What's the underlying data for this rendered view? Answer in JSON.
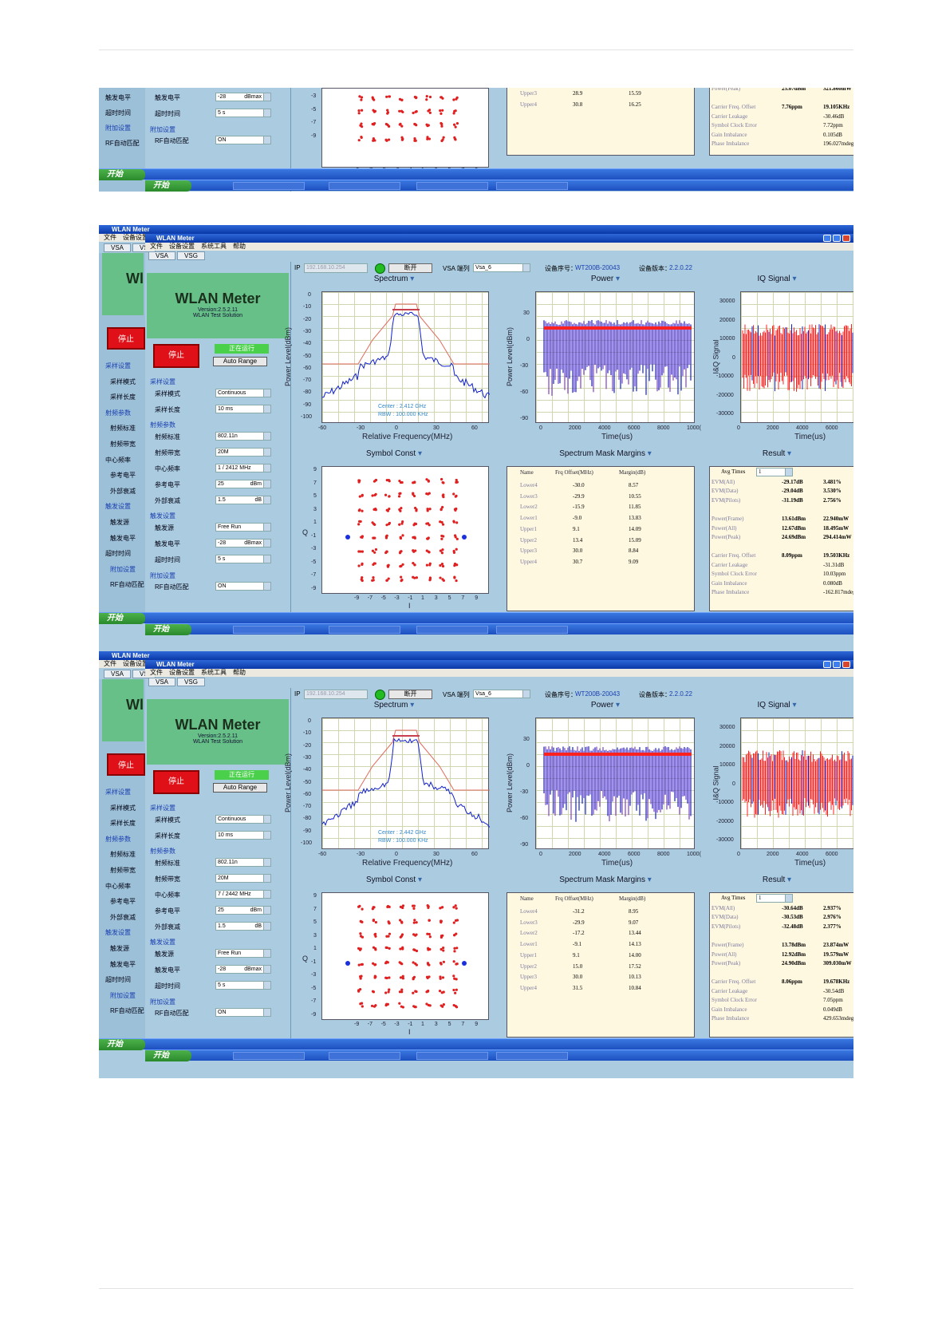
{
  "app": {
    "title": "WLAN Meter",
    "menus": [
      "文件",
      "设备设置",
      "系统工具",
      "帮助"
    ],
    "tabs": [
      "VSA",
      "VSG"
    ],
    "logo_title": "WLAN Meter",
    "version": "Version:2.5.2.11",
    "subtitle": "WLAN Test Solution",
    "stop": "停止",
    "running": "正在运行",
    "auto_range": "Auto Range",
    "start_button": "开始"
  },
  "back_window": {
    "menus": [
      "文件",
      "设备设置"
    ],
    "tabs": [
      "VSA",
      "VS"
    ],
    "stop": "停止",
    "labels": [
      "采样设置",
      "采样模式",
      "采样长度",
      "射频参数",
      "射频标准",
      "射频带宽",
      "中心频率",
      "参考电平",
      "外部衰减",
      "触发设置",
      "触发源",
      "触发电平",
      "超时时间",
      "附加设置",
      "RF自动匹配"
    ]
  },
  "topbar": {
    "ip_label": "IP",
    "ip": "192.168.10.254",
    "disconnect": "断开",
    "vsa_label": "VSA 端列",
    "vsa_value": "Vsa_6",
    "sn_label": "设备序号：",
    "sn": "WT200B-20043",
    "ver_label": "设备版本：",
    "ver": "2.2.0.22"
  },
  "panels": {
    "spectrum": "Spectrum",
    "power": "Power",
    "iq": "IQ Signal",
    "symbol": "Symbol Const",
    "mask": "Spectrum Mask Margins",
    "result": "Result"
  },
  "axes": {
    "spec_y_label": "Power Level(dBm)",
    "spec_y_ticks": [
      "0",
      "-10",
      "-20",
      "-30",
      "-40",
      "-50",
      "-60",
      "-70",
      "-80",
      "-90",
      "-100"
    ],
    "spec_x_label": "Relative Frequency(MHz)",
    "spec_x_ticks": [
      "-60",
      "-30",
      "0",
      "30",
      "60"
    ],
    "pow_y_label": "Power Level(dBm)",
    "pow_y_ticks": [
      "30",
      "0",
      "-30",
      "-60",
      "-90"
    ],
    "time_label": "Time(us)",
    "pow_x_ticks": [
      "0",
      "2000",
      "4000",
      "6000",
      "8000",
      "1000("
    ],
    "iq_y_label": "I&Q Signal",
    "iq_y_ticks": [
      "30000",
      "20000",
      "10000",
      "0",
      "-10000",
      "-20000",
      "-30000"
    ],
    "iq_x_ticks": [
      "0",
      "2000",
      "4000",
      "6000",
      "8"
    ],
    "const_y_label": "Q",
    "const_y_ticks": [
      "9",
      "7",
      "5",
      "3",
      "1",
      "-1",
      "-3",
      "-5",
      "-7",
      "-9"
    ],
    "const_x_ticks": [
      "-9",
      "-7",
      "-5",
      "-3",
      "-1",
      "1",
      "3",
      "5",
      "7",
      "9"
    ],
    "const_x_label": "I"
  },
  "mask_headers": [
    "Name",
    "Frq Offset(MHz)",
    "Margin(dB)"
  ],
  "result_avg_label": "Avg Times",
  "result_avg_value": "1",
  "form_labels": [
    {
      "sec": "采样设置"
    },
    {
      "lbl": "采样模式",
      "val": "Continuous"
    },
    {
      "lbl": "采样长度",
      "val": "10 ms"
    },
    {
      "sec": "射频参数"
    },
    {
      "lbl": "射频标准",
      "val": "802.11n"
    },
    {
      "lbl": "射频带宽",
      "val": "20M"
    },
    {
      "lbl": "中心频率"
    },
    {
      "lbl": "参考电平",
      "val": "25",
      "unit": "dBm"
    },
    {
      "lbl": "外部衰减",
      "val": "1.5",
      "unit": "dB"
    },
    {
      "sec": "触发设置"
    },
    {
      "lbl": "触发源",
      "val": "Free Run"
    },
    {
      "lbl": "触发电平",
      "val": "-28",
      "unit": "dBmax"
    },
    {
      "lbl": "超时时间",
      "val": "5 s"
    },
    {
      "sec": "附加设置"
    },
    {
      "lbl": "RF自动匹配",
      "val": "ON"
    }
  ],
  "screens": [
    {
      "center_freq": "1 / 2412 MHz",
      "spec_note1": "Center : 2.412 GHz",
      "spec_note2": "RBW : 100.000 KHz",
      "mask": [
        [
          "Lower4",
          "-30.0",
          "8.57"
        ],
        [
          "Lower3",
          "-29.9",
          "10.55"
        ],
        [
          "Lower2",
          "-15.9",
          "11.85"
        ],
        [
          "Lower1",
          "-9.0",
          "13.83"
        ],
        [
          "Upper1",
          "9.1",
          "14.09"
        ],
        [
          "Upper2",
          "13.4",
          "15.09"
        ],
        [
          "Upper3",
          "30.0",
          "8.84"
        ],
        [
          "Upper4",
          "30.7",
          "9.09"
        ]
      ],
      "result": [
        [
          "EVM(All)",
          "-29.17dB",
          "3.481%"
        ],
        [
          "EVM(Data)",
          "-29.04dB",
          "3.530%"
        ],
        [
          "EVM(Pilots)",
          "-31.19dB",
          "2.756%"
        ],
        [],
        [
          "Power(Frame)",
          "13.61dBm",
          "22.940mW"
        ],
        [
          "Power(All)",
          "12.67dBm",
          "18.495mW"
        ],
        [
          "Power(Peak)",
          "24.69dBm",
          "294.414mW"
        ],
        [],
        [
          "Carrier Freq. Offset",
          "8.09ppm",
          "19.503KHz"
        ],
        [
          "Carrier Leakage",
          "",
          "-31.31dB"
        ],
        [
          "Symbol Clock Error",
          "",
          "10.03ppm"
        ],
        [
          "Gain Imbalance",
          "",
          "0.080dB"
        ],
        [
          "Phase Imbalance",
          "",
          "-162.817mdeg"
        ]
      ]
    },
    {
      "center_freq": "7 / 2442 MHz",
      "spec_note1": "Center : 2.442 GHz",
      "spec_note2": "RBW : 100.000 KHz",
      "mask": [
        [
          "Lower4",
          "-31.2",
          "8.95"
        ],
        [
          "Lower3",
          "-29.9",
          "9.07"
        ],
        [
          "Lower2",
          "-17.2",
          "13.44"
        ],
        [
          "Lower1",
          "-9.1",
          "14.13"
        ],
        [
          "Upper1",
          "9.1",
          "14.00"
        ],
        [
          "Upper2",
          "15.0",
          "17.52"
        ],
        [
          "Upper3",
          "30.0",
          "10.13"
        ],
        [
          "Upper4",
          "31.5",
          "10.84"
        ]
      ],
      "result": [
        [
          "EVM(All)",
          "-30.64dB",
          "2.937%"
        ],
        [
          "EVM(Data)",
          "-30.53dB",
          "2.976%"
        ],
        [
          "EVM(Pilots)",
          "-32.48dB",
          "2.377%"
        ],
        [],
        [
          "Power(Frame)",
          "13.78dBm",
          "23.874mW"
        ],
        [
          "Power(All)",
          "12.92dBm",
          "19.579mW"
        ],
        [
          "Power(Peak)",
          "24.90dBm",
          "309.030mW"
        ],
        [],
        [
          "Carrier Freq. Offset",
          "8.06ppm",
          "19.678KHz"
        ],
        [
          "Carrier Leakage",
          "",
          "-30.54dB"
        ],
        [
          "Symbol Clock Error",
          "",
          "7.05ppm"
        ],
        [
          "Gain Imbalance",
          "",
          "0.049dB"
        ],
        [
          "Phase Imbalance",
          "",
          "429.653mdeg"
        ]
      ]
    }
  ],
  "partial": {
    "labels": [
      {
        "lbl": "触发电平",
        "val": "-28",
        "unit": "dBmax"
      },
      {
        "lbl": "超时时间",
        "val": "5 s"
      },
      {
        "sec": "附加设置"
      },
      {
        "lbl": "RF自动匹配",
        "val": "ON"
      }
    ],
    "back_labels": [
      "触发电平",
      "超时时间",
      "附加设置",
      "RF自动匹配"
    ],
    "const_y_ticks": [
      "-3",
      "-5",
      "-7",
      "-9"
    ],
    "mask": [
      [
        "Upper3",
        "28.9",
        "15.59"
      ],
      [
        "Upper4",
        "30.8",
        "16.25"
      ]
    ],
    "result": [
      [
        "Power(Peak)",
        "25.07dBm",
        "321.860mW"
      ],
      [],
      [
        "Carrier Freq. Offset",
        "7.76ppm",
        "19.105KHz"
      ],
      [
        "Carrier Leakage",
        "",
        "-30.46dB"
      ],
      [
        "Symbol Clock Error",
        "",
        "7.72ppm"
      ],
      [
        "Gain Imbalance",
        "",
        "0.105dB"
      ],
      [
        "Phase Imbalance",
        "",
        "196.027mdeg"
      ]
    ]
  },
  "colors": {
    "trace_blue": "#1020d0",
    "trace_red": "#ff2020",
    "mask_red": "#e06a5c",
    "panel_bg": "#aacbe0",
    "result_bg": "#fff8e0",
    "logo_green": "#67c087"
  }
}
